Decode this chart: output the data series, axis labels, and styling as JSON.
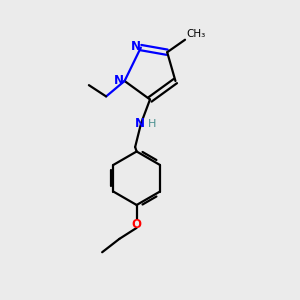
{
  "bg_color": "#ebebeb",
  "bond_color": "#000000",
  "N_color": "#0000ff",
  "O_color": "#ff0000",
  "NH_color": "#4a9090",
  "H_color": "#4a9090",
  "line_width": 1.6,
  "figsize": [
    3.0,
    3.0
  ],
  "dpi": 100,
  "xlim": [
    0,
    10
  ],
  "ylim": [
    0,
    10
  ]
}
